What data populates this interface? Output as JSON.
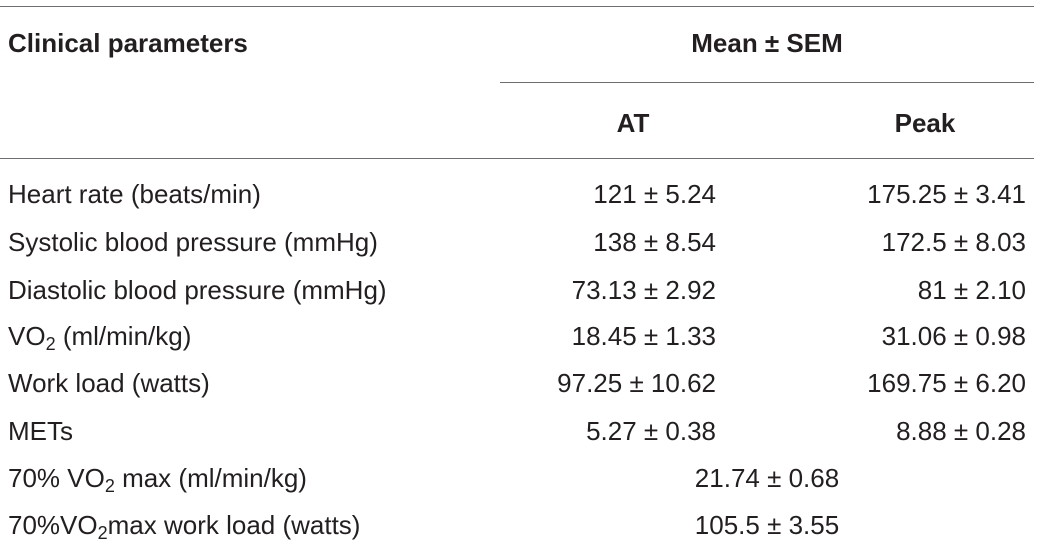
{
  "table": {
    "header": {
      "param_label": "Clinical parameters",
      "group_label": "Mean ± SEM",
      "at_label": "AT",
      "peak_label": "Peak"
    },
    "rows": [
      {
        "param": "Heart rate (beats/min)",
        "at": "121 ± 5.24",
        "peak": "175.25 ± 3.41"
      },
      {
        "param": "Systolic blood pressure (mmHg)",
        "at": "138 ± 8.54",
        "peak": "172.5 ± 8.03"
      },
      {
        "param": "Diastolic blood pressure (mmHg)",
        "at": "73.13 ± 2.92",
        "peak": "81 ± 2.10"
      },
      {
        "param_pre": "VO",
        "param_sub": "2",
        "param_post": " (ml/min/kg)",
        "at": "18.45 ± 1.33",
        "peak": "31.06 ± 0.98"
      },
      {
        "param": "Work load (watts)",
        "at": "97.25 ± 10.62",
        "peak": "169.75 ± 6.20"
      },
      {
        "param": "METs",
        "at": "5.27 ± 0.38",
        "peak": "8.88 ± 0.28"
      },
      {
        "param_pre": "70% VO",
        "param_sub": "2",
        "param_post": " max (ml/min/kg)",
        "value": "21.74 ± 0.68"
      },
      {
        "param_pre": "70%VO",
        "param_sub": "2",
        "param_post": "max work load (watts)",
        "value": "105.5 ± 3.55"
      }
    ]
  }
}
